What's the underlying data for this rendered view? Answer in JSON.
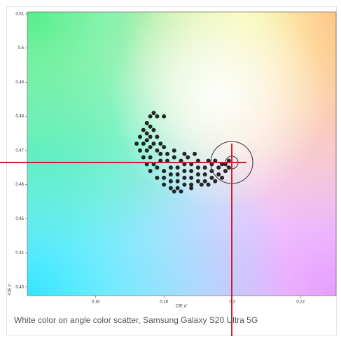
{
  "chart_data": {
    "type": "scatter",
    "x_label": "CIE u'",
    "y_label": "CIE v'",
    "caption": "White color on angle color scatter, Samsung Galaxy S20 Ultra 5G",
    "xlim": [
      0.14,
      0.2304
    ],
    "ylim": [
      0.4275,
      0.5106
    ],
    "xticks": [
      0.16,
      0.18,
      0.2,
      0.22
    ],
    "yticks": [
      0.43,
      0.44,
      0.45,
      0.46,
      0.47,
      0.48,
      0.49,
      0.5,
      0.51
    ],
    "color": "#111111",
    "x": [
      0.176,
      0.177,
      0.178,
      0.18,
      0.175,
      0.176,
      0.174,
      0.175,
      0.177,
      0.173,
      0.175,
      0.176,
      0.178,
      0.172,
      0.174,
      0.176,
      0.177,
      0.179,
      0.173,
      0.175,
      0.178,
      0.18,
      0.174,
      0.176,
      0.179,
      0.181,
      0.183,
      0.175,
      0.177,
      0.179,
      0.181,
      0.183,
      0.185,
      0.176,
      0.178,
      0.18,
      0.182,
      0.184,
      0.186,
      0.188,
      0.19,
      0.178,
      0.18,
      0.182,
      0.184,
      0.186,
      0.188,
      0.19,
      0.192,
      0.194,
      0.18,
      0.182,
      0.184,
      0.186,
      0.188,
      0.19,
      0.192,
      0.194,
      0.196,
      0.182,
      0.184,
      0.186,
      0.188,
      0.19,
      0.192,
      0.194,
      0.196,
      0.198,
      0.183,
      0.185,
      0.188,
      0.191,
      0.193,
      0.195,
      0.197,
      0.199,
      0.198,
      0.199,
      0.197,
      0.195,
      0.193,
      0.187,
      0.189,
      0.186
    ],
    "values": [
      0.48,
      0.481,
      0.48,
      0.48,
      0.478,
      0.477,
      0.476,
      0.475,
      0.476,
      0.474,
      0.473,
      0.474,
      0.474,
      0.472,
      0.472,
      0.471,
      0.472,
      0.472,
      0.47,
      0.47,
      0.47,
      0.471,
      0.468,
      0.468,
      0.469,
      0.469,
      0.47,
      0.466,
      0.466,
      0.467,
      0.467,
      0.468,
      0.467,
      0.464,
      0.465,
      0.464,
      0.465,
      0.465,
      0.466,
      0.466,
      0.467,
      0.462,
      0.462,
      0.463,
      0.463,
      0.464,
      0.464,
      0.465,
      0.465,
      0.466,
      0.46,
      0.461,
      0.461,
      0.462,
      0.462,
      0.463,
      0.463,
      0.464,
      0.465,
      0.459,
      0.459,
      0.46,
      0.46,
      0.461,
      0.461,
      0.462,
      0.463,
      0.464,
      0.458,
      0.458,
      0.459,
      0.46,
      0.46,
      0.461,
      0.462,
      0.465,
      0.466,
      0.467,
      0.466,
      0.467,
      0.467,
      0.468,
      0.469,
      0.469
    ]
  }
}
